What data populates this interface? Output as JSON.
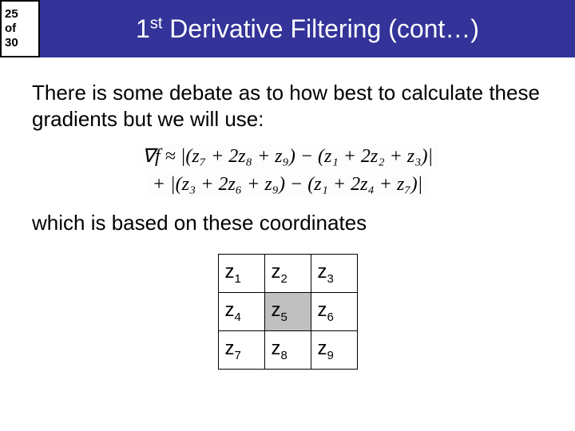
{
  "header": {
    "counter": {
      "current": "25",
      "word": "of",
      "total": "30"
    },
    "title_prefix": "1",
    "title_sup": "st",
    "title_rest": " Derivative Filtering (cont…)"
  },
  "text": {
    "p1": "There is some debate as to how best to calculate these gradients but we will use:",
    "p2": "which is based on these coordinates"
  },
  "formula": {
    "line1": "∇f ≈ |(z₇ + 2z₈ + z₉) − (z₁ + 2z₂ + z₃)|",
    "line2": "+ |(z₃ + 2z₆ + z₉) − (z₁ + 2z₄ + z₇)|"
  },
  "grid": {
    "cells": [
      [
        "z",
        "1",
        "z",
        "2",
        "z",
        "3"
      ],
      [
        "z",
        "4",
        "z",
        "5",
        "z",
        "6"
      ],
      [
        "z",
        "7",
        "z",
        "8",
        "z",
        "9"
      ]
    ],
    "shaded_row": 1,
    "shaded_col": 1
  },
  "colors": {
    "header_bg": "#333399",
    "header_text": "#ffffff",
    "page_bg": "#ffffff",
    "border": "#000000",
    "shaded_cell": "#c0c0c0"
  }
}
